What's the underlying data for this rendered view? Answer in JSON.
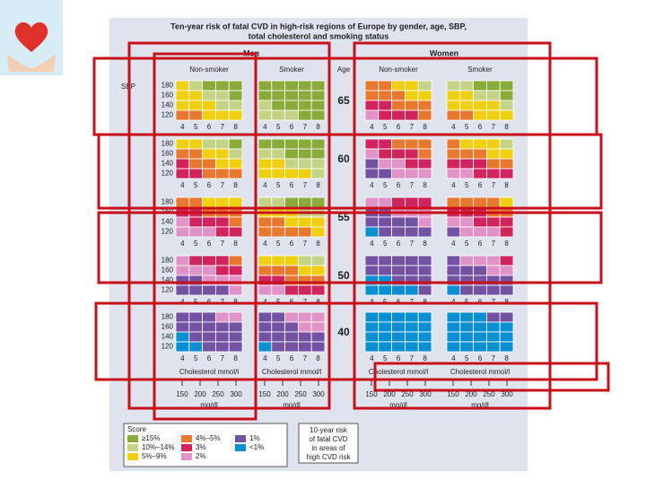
{
  "title_lines": [
    "Ten-year risk of fatal CVD in high-risk regions of Europe by gender, age, SBP,",
    "total cholesterol and smoking status"
  ],
  "sbp_label": "SBP",
  "age_label": "Age",
  "ages": [
    65,
    60,
    55,
    50,
    40
  ],
  "sbp": [
    180,
    160,
    140,
    120
  ],
  "cholesterol": [
    4,
    5,
    6,
    7,
    8
  ],
  "cholesterol_label": "Cholesterol mmol/l",
  "mg_dl": [
    150,
    200,
    250,
    300
  ],
  "mg_dl_label": "mg/dl",
  "groups": [
    {
      "name": "Men",
      "columns": [
        {
          "name": "Non-smoker",
          "blocks": [
            [
              [
                2,
                1,
                0,
                0,
                0
              ],
              [
                2,
                2,
                1,
                1,
                0
              ],
              [
                2,
                2,
                2,
                1,
                1
              ],
              [
                3,
                3,
                2,
                2,
                2
              ]
            ],
            [
              [
                2,
                2,
                1,
                1,
                0
              ],
              [
                3,
                3,
                2,
                2,
                1
              ],
              [
                4,
                3,
                3,
                2,
                2
              ],
              [
                4,
                4,
                3,
                3,
                3
              ]
            ],
            [
              [
                3,
                3,
                2,
                2,
                2
              ],
              [
                4,
                4,
                3,
                3,
                3
              ],
              [
                5,
                4,
                4,
                4,
                3
              ],
              [
                5,
                5,
                5,
                4,
                4
              ]
            ],
            [
              [
                5,
                4,
                4,
                4,
                3
              ],
              [
                5,
                5,
                5,
                4,
                4
              ],
              [
                6,
                6,
                5,
                5,
                5
              ],
              [
                6,
                6,
                6,
                6,
                5
              ]
            ],
            [
              [
                6,
                6,
                6,
                5,
                5
              ],
              [
                6,
                6,
                6,
                6,
                6
              ],
              [
                7,
                6,
                6,
                6,
                6
              ],
              [
                7,
                7,
                6,
                6,
                6
              ]
            ]
          ]
        },
        {
          "name": "Smoker",
          "blocks": [
            [
              [
                0,
                0,
                0,
                0,
                0
              ],
              [
                0,
                0,
                0,
                0,
                0
              ],
              [
                1,
                0,
                0,
                0,
                0
              ],
              [
                1,
                1,
                1,
                0,
                0
              ]
            ],
            [
              [
                0,
                0,
                0,
                0,
                0
              ],
              [
                1,
                1,
                0,
                0,
                0
              ],
              [
                2,
                2,
                1,
                1,
                1
              ],
              [
                2,
                2,
                2,
                2,
                1
              ]
            ],
            [
              [
                1,
                1,
                0,
                0,
                0
              ],
              [
                2,
                2,
                2,
                1,
                1
              ],
              [
                3,
                3,
                2,
                2,
                2
              ],
              [
                3,
                3,
                3,
                3,
                2
              ]
            ],
            [
              [
                2,
                2,
                2,
                1,
                1
              ],
              [
                3,
                3,
                3,
                2,
                2
              ],
              [
                4,
                4,
                3,
                3,
                3
              ],
              [
                5,
                5,
                4,
                4,
                4
              ]
            ],
            [
              [
                6,
                6,
                5,
                5,
                5
              ],
              [
                6,
                6,
                6,
                5,
                5
              ],
              [
                6,
                6,
                6,
                6,
                6
              ],
              [
                7,
                6,
                6,
                6,
                6
              ]
            ]
          ]
        }
      ]
    },
    {
      "name": "Women",
      "columns": [
        {
          "name": "Non-smoker",
          "blocks": [
            [
              [
                3,
                3,
                2,
                2,
                1
              ],
              [
                3,
                3,
                3,
                2,
                2
              ],
              [
                4,
                4,
                3,
                3,
                3
              ],
              [
                5,
                4,
                4,
                4,
                3
              ]
            ],
            [
              [
                4,
                4,
                3,
                3,
                3
              ],
              [
                5,
                4,
                4,
                4,
                3
              ],
              [
                6,
                5,
                5,
                4,
                4
              ],
              [
                6,
                6,
                5,
                5,
                5
              ]
            ],
            [
              [
                5,
                5,
                4,
                4,
                4
              ],
              [
                6,
                6,
                5,
                5,
                5
              ],
              [
                6,
                6,
                6,
                6,
                5
              ],
              [
                7,
                6,
                6,
                6,
                6
              ]
            ],
            [
              [
                6,
                6,
                6,
                6,
                6
              ],
              [
                6,
                6,
                6,
                6,
                6
              ],
              [
                7,
                7,
                6,
                6,
                6
              ],
              [
                7,
                7,
                7,
                7,
                6
              ]
            ],
            [
              [
                7,
                7,
                7,
                7,
                7
              ],
              [
                7,
                7,
                7,
                7,
                7
              ],
              [
                7,
                7,
                7,
                7,
                7
              ],
              [
                7,
                7,
                7,
                7,
                7
              ]
            ]
          ]
        },
        {
          "name": "Smoker",
          "blocks": [
            [
              [
                1,
                1,
                0,
                0,
                0
              ],
              [
                2,
                2,
                1,
                1,
                0
              ],
              [
                2,
                2,
                2,
                2,
                1
              ],
              [
                3,
                3,
                2,
                2,
                2
              ]
            ],
            [
              [
                3,
                2,
                2,
                2,
                1
              ],
              [
                3,
                3,
                3,
                2,
                2
              ],
              [
                4,
                4,
                4,
                3,
                3
              ],
              [
                5,
                5,
                4,
                4,
                4
              ]
            ],
            [
              [
                3,
                3,
                3,
                3,
                2
              ],
              [
                4,
                4,
                4,
                3,
                3
              ],
              [
                5,
                5,
                4,
                4,
                4
              ],
              [
                6,
                5,
                5,
                5,
                4
              ]
            ],
            [
              [
                6,
                5,
                5,
                5,
                4
              ],
              [
                6,
                6,
                6,
                5,
                5
              ],
              [
                6,
                6,
                6,
                6,
                6
              ],
              [
                7,
                6,
                6,
                6,
                6
              ]
            ],
            [
              [
                7,
                7,
                7,
                6,
                6
              ],
              [
                7,
                7,
                7,
                7,
                7
              ],
              [
                7,
                7,
                7,
                7,
                7
              ],
              [
                7,
                7,
                7,
                7,
                7
              ]
            ]
          ]
        }
      ]
    }
  ],
  "legend_title": "Score",
  "legend": [
    {
      "label": "≥15%",
      "color": "#8aaa3a"
    },
    {
      "label": "10%–14%",
      "color": "#c3d487"
    },
    {
      "label": "5%–9%",
      "color": "#f0cf10"
    },
    {
      "label": "4%–5%",
      "color": "#e8782e"
    },
    {
      "label": "3%",
      "color": "#d1245e"
    },
    {
      "label": "2%",
      "color": "#e192c6"
    },
    {
      "label": "1%",
      "color": "#7352a3"
    },
    {
      "label": "<1%",
      "color": "#0a90d2"
    }
  ],
  "note_lines": [
    "10-year risk",
    "of fatal CVD",
    "in areas of",
    "high CVD risk"
  ]
}
